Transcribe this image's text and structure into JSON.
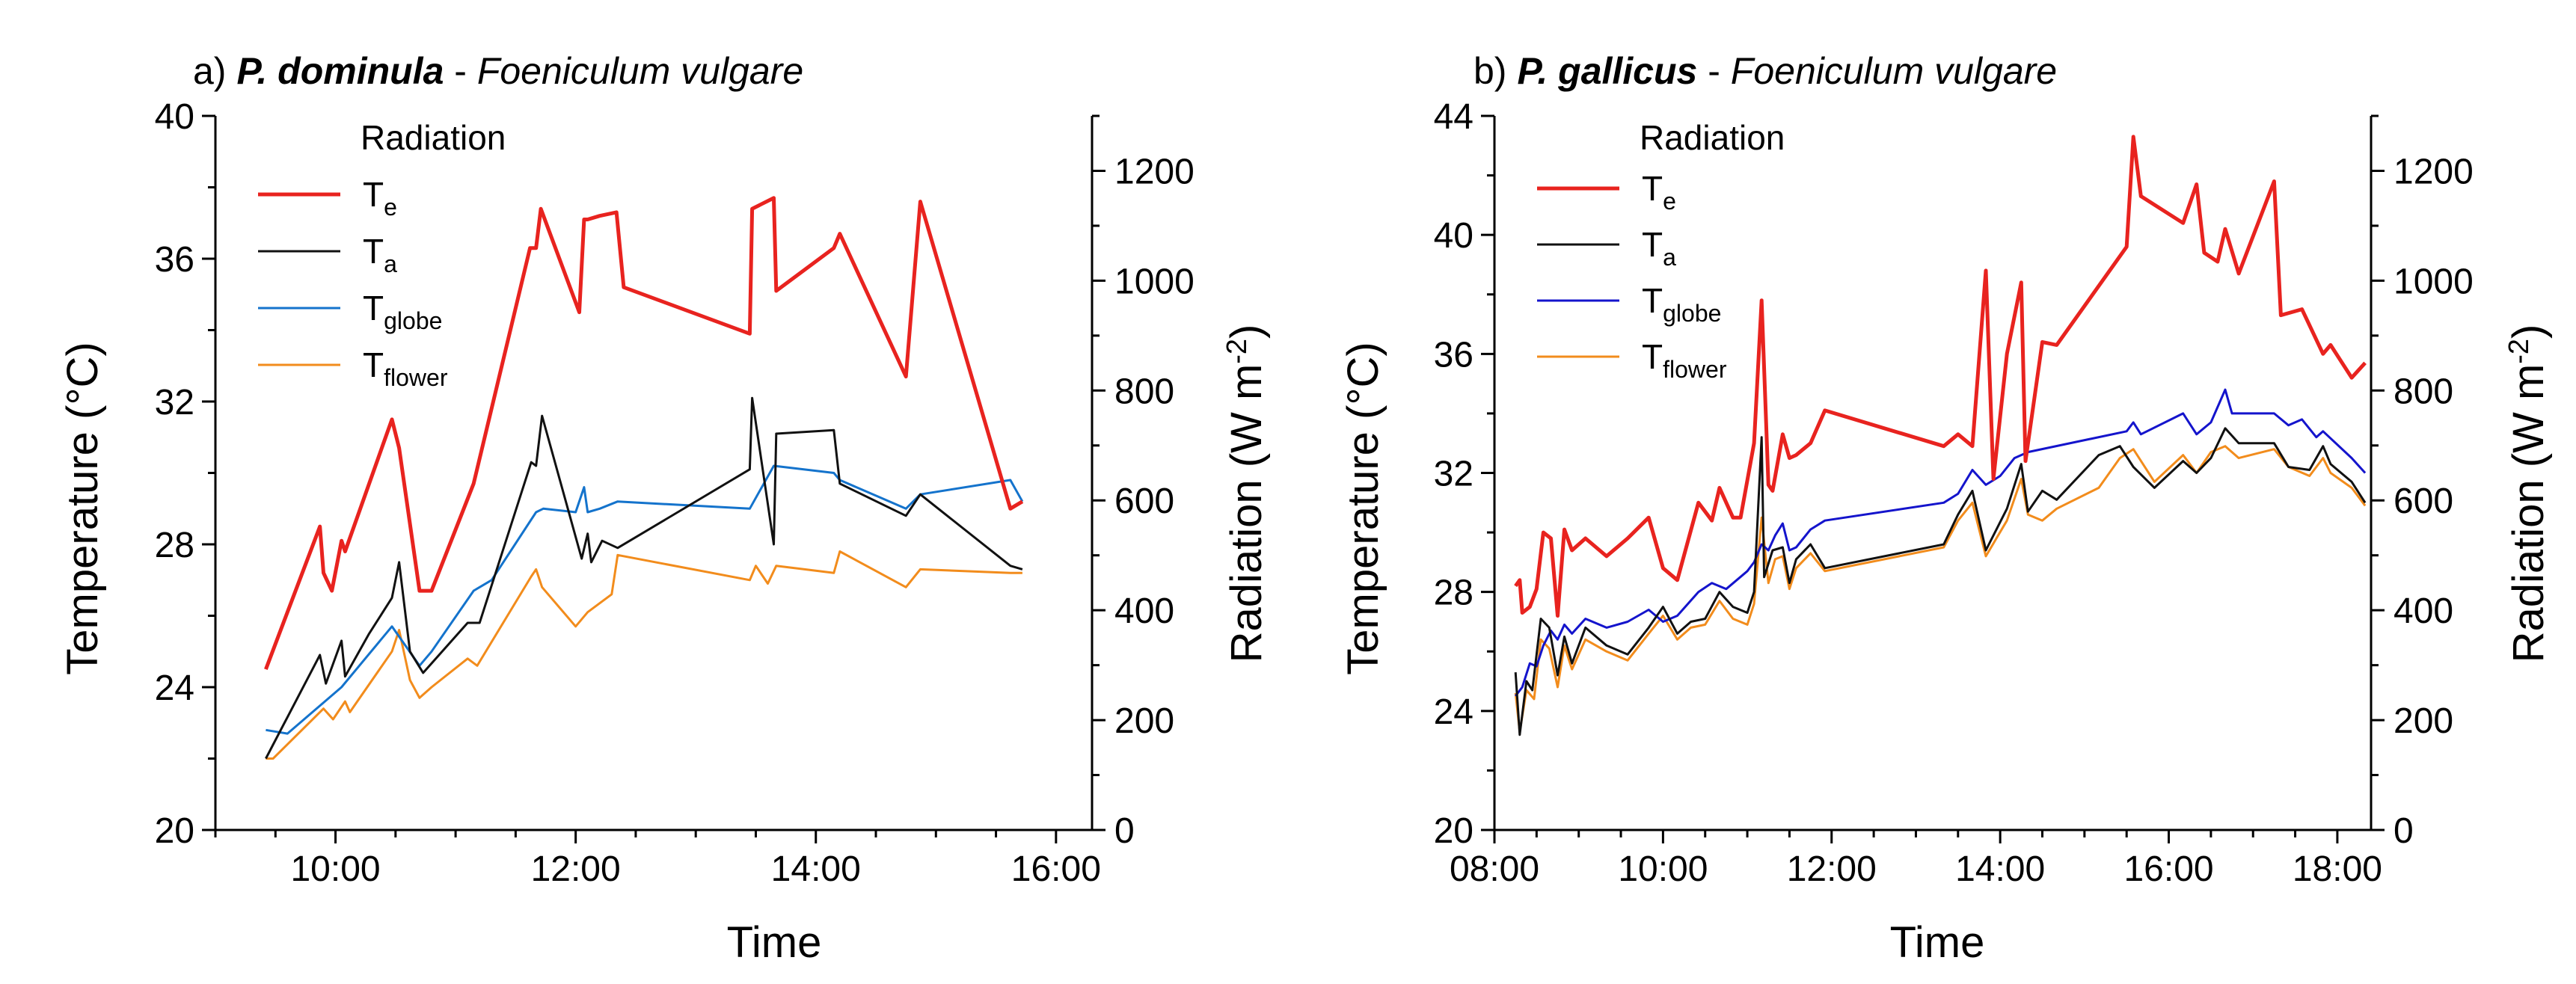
{
  "chart_data": [
    {
      "type": "line",
      "panel_label": "a)",
      "title_species": "P. dominula",
      "title_separator": " - ",
      "title_plant": "Foeniculum vulgare",
      "xlabel": "Time",
      "ylabel": "Temperature (°C)",
      "y2label_main": "Radiation (W m",
      "y2label_sup": "-2",
      "y2label_close": ")",
      "xlim": [
        9.0,
        16.3
      ],
      "ylim": [
        20,
        40
      ],
      "y2lim": [
        0,
        1300
      ],
      "xticks": [
        10,
        12,
        14,
        16
      ],
      "xtick_labels": [
        "10:00",
        "12:00",
        "14:00",
        "16:00"
      ],
      "yticks": [
        20,
        24,
        28,
        32,
        36,
        40
      ],
      "ytick_labels": [
        "20",
        "24",
        "28",
        "32",
        "36",
        "40"
      ],
      "y2ticks": [
        0,
        200,
        400,
        600,
        800,
        1000,
        1200
      ],
      "y2tick_labels": [
        "0",
        "200",
        "400",
        "600",
        "800",
        "1000",
        "1200"
      ],
      "legend_title": "Radiation",
      "series": [
        {
          "name": "Te",
          "base": "T",
          "sub": "e",
          "color": "#e8231f",
          "width": 5,
          "x": [
            9.42,
            9.87,
            9.9,
            9.97,
            10.05,
            10.08,
            10.47,
            10.53,
            10.7,
            10.8,
            11.15,
            11.62,
            11.67,
            11.71,
            12.03,
            12.07,
            12.1,
            12.2,
            12.34,
            12.4,
            13.45,
            13.47,
            13.65,
            13.67,
            14.15,
            14.2,
            14.75,
            14.87,
            15.62,
            15.72
          ],
          "y": [
            24.5,
            28.5,
            27.2,
            26.7,
            28.1,
            27.8,
            31.5,
            30.7,
            26.7,
            26.7,
            29.7,
            36.3,
            36.3,
            37.4,
            34.5,
            37.1,
            37.1,
            37.2,
            37.3,
            35.2,
            33.9,
            37.4,
            37.7,
            35.1,
            36.3,
            36.7,
            32.7,
            37.6,
            29.0,
            29.2
          ]
        },
        {
          "name": "Ta",
          "base": "T",
          "sub": "a",
          "color": "#111111",
          "width": 3,
          "x": [
            9.42,
            9.87,
            9.92,
            10.05,
            10.08,
            10.28,
            10.47,
            10.53,
            10.62,
            10.73,
            11.1,
            11.2,
            11.63,
            11.67,
            11.72,
            12.05,
            12.1,
            12.13,
            12.22,
            12.35,
            13.45,
            13.47,
            13.65,
            13.67,
            14.15,
            14.2,
            14.75,
            14.87,
            15.62,
            15.72
          ],
          "y": [
            22.0,
            24.9,
            24.1,
            25.3,
            24.3,
            25.5,
            26.5,
            27.5,
            25.0,
            24.4,
            25.8,
            25.8,
            30.3,
            30.2,
            31.6,
            27.6,
            28.3,
            27.5,
            28.1,
            27.9,
            30.1,
            32.1,
            28.0,
            31.1,
            31.2,
            29.7,
            28.8,
            29.4,
            27.4,
            27.3
          ]
        },
        {
          "name": "Tglobe",
          "base": "T",
          "sub": "globe",
          "color": "#1473cc",
          "width": 3,
          "x": [
            9.42,
            9.6,
            10.05,
            10.47,
            10.7,
            10.8,
            11.15,
            11.3,
            11.67,
            11.73,
            12.0,
            12.07,
            12.1,
            12.2,
            12.35,
            13.45,
            13.65,
            14.15,
            14.2,
            14.75,
            14.87,
            15.62,
            15.72
          ],
          "y": [
            22.8,
            22.7,
            24.0,
            25.7,
            24.6,
            25.0,
            26.7,
            27.0,
            28.9,
            29.0,
            28.9,
            29.6,
            28.9,
            29.0,
            29.2,
            29.0,
            30.2,
            30.0,
            29.8,
            29.0,
            29.4,
            29.8,
            29.2
          ]
        },
        {
          "name": "Tflower",
          "base": "T",
          "sub": "flower",
          "color": "#f28c1c",
          "width": 3,
          "x": [
            9.42,
            9.48,
            9.9,
            9.98,
            10.08,
            10.12,
            10.47,
            10.53,
            10.62,
            10.7,
            10.8,
            11.1,
            11.18,
            11.63,
            11.67,
            11.72,
            12.0,
            12.1,
            12.3,
            12.35,
            13.45,
            13.5,
            13.6,
            13.67,
            14.15,
            14.2,
            14.75,
            14.87,
            15.62,
            15.72
          ],
          "y": [
            22.0,
            22.0,
            23.4,
            23.1,
            23.6,
            23.3,
            25.0,
            25.6,
            24.2,
            23.7,
            24.0,
            24.8,
            24.6,
            27.1,
            27.3,
            26.8,
            25.7,
            26.1,
            26.6,
            27.7,
            27.0,
            27.4,
            26.9,
            27.4,
            27.2,
            27.8,
            26.8,
            27.3,
            27.2,
            27.2
          ]
        }
      ]
    },
    {
      "type": "line",
      "panel_label": "b)",
      "title_species": "P. gallicus",
      "title_separator": " - ",
      "title_plant": "Foeniculum vulgare",
      "xlabel": "Time",
      "ylabel": "Temperature (°C)",
      "y2label_main": "Radiation (W m",
      "y2label_sup": "-2",
      "y2label_close": ")",
      "xlim": [
        8.0,
        18.4
      ],
      "ylim": [
        20,
        44
      ],
      "y2lim": [
        0,
        1300
      ],
      "xticks": [
        8,
        10,
        12,
        14,
        16,
        18
      ],
      "xtick_labels": [
        "08:00",
        "10:00",
        "12:00",
        "14:00",
        "16:00",
        "18:00"
      ],
      "yticks": [
        20,
        24,
        28,
        32,
        36,
        40,
        44
      ],
      "ytick_labels": [
        "20",
        "24",
        "28",
        "32",
        "36",
        "40",
        "44"
      ],
      "y2ticks": [
        0,
        200,
        400,
        600,
        800,
        1000,
        1200
      ],
      "y2tick_labels": [
        "0",
        "200",
        "400",
        "600",
        "800",
        "1000",
        "1200"
      ],
      "legend_title": "Radiation",
      "series": [
        {
          "name": "Te",
          "base": "T",
          "sub": "e",
          "color": "#e8231f",
          "width": 5,
          "x": [
            8.25,
            8.3,
            8.33,
            8.42,
            8.5,
            8.58,
            8.67,
            8.75,
            8.83,
            8.92,
            9.08,
            9.33,
            9.58,
            9.83,
            10.0,
            10.17,
            10.42,
            10.58,
            10.67,
            10.83,
            10.92,
            11.08,
            11.17,
            11.25,
            11.3,
            11.42,
            11.5,
            11.58,
            11.75,
            11.92,
            13.33,
            13.5,
            13.67,
            13.83,
            13.92,
            14.08,
            14.25,
            14.3,
            14.5,
            14.67,
            15.5,
            15.58,
            15.67,
            16.17,
            16.33,
            16.42,
            16.58,
            16.67,
            16.83,
            17.25,
            17.33,
            17.58,
            17.83,
            17.92,
            18.17,
            18.33
          ],
          "y": [
            28.2,
            28.4,
            27.3,
            27.5,
            28.1,
            30.0,
            29.8,
            27.2,
            30.1,
            29.4,
            29.8,
            29.2,
            29.8,
            30.5,
            28.8,
            28.4,
            31.0,
            30.4,
            31.5,
            30.5,
            30.5,
            33.0,
            37.8,
            31.6,
            31.4,
            33.3,
            32.5,
            32.6,
            33.0,
            34.1,
            32.9,
            33.3,
            32.9,
            38.8,
            31.8,
            36.0,
            38.4,
            32.4,
            36.4,
            36.3,
            39.6,
            43.3,
            41.3,
            40.4,
            41.7,
            39.4,
            39.1,
            40.2,
            38.7,
            41.8,
            37.3,
            37.5,
            36.0,
            36.3,
            35.2,
            35.7
          ]
        },
        {
          "name": "Ta",
          "base": "T",
          "sub": "a",
          "color": "#111111",
          "width": 3,
          "x": [
            8.25,
            8.3,
            8.38,
            8.45,
            8.55,
            8.65,
            8.75,
            8.83,
            8.92,
            9.08,
            9.33,
            9.58,
            9.83,
            10.0,
            10.17,
            10.33,
            10.5,
            10.67,
            10.83,
            11.0,
            11.08,
            11.17,
            11.2,
            11.3,
            11.42,
            11.5,
            11.58,
            11.75,
            11.92,
            13.33,
            13.5,
            13.67,
            13.83,
            14.08,
            14.25,
            14.33,
            14.5,
            14.67,
            15.17,
            15.42,
            15.58,
            15.83,
            16.17,
            16.33,
            16.5,
            16.67,
            16.83,
            17.25,
            17.42,
            17.67,
            17.83,
            17.92,
            18.17,
            18.33
          ],
          "y": [
            25.3,
            23.2,
            25.0,
            24.7,
            27.1,
            26.8,
            25.2,
            26.5,
            25.6,
            26.8,
            26.2,
            25.9,
            26.8,
            27.5,
            26.6,
            27.0,
            27.1,
            28.0,
            27.5,
            27.3,
            28.0,
            33.2,
            28.5,
            29.4,
            29.5,
            28.3,
            29.1,
            29.6,
            28.8,
            29.6,
            30.6,
            31.4,
            29.4,
            30.8,
            32.3,
            30.7,
            31.4,
            31.1,
            32.6,
            32.9,
            32.2,
            31.5,
            32.4,
            32.0,
            32.5,
            33.5,
            33.0,
            33.0,
            32.2,
            32.1,
            32.9,
            32.3,
            31.7,
            31.0
          ]
        },
        {
          "name": "Tglobe",
          "base": "T",
          "sub": "globe",
          "color": "#1414cc",
          "width": 3,
          "x": [
            8.25,
            8.33,
            8.42,
            8.5,
            8.58,
            8.67,
            8.75,
            8.83,
            8.92,
            9.08,
            9.33,
            9.58,
            9.83,
            10.0,
            10.17,
            10.42,
            10.58,
            10.75,
            11.0,
            11.08,
            11.17,
            11.25,
            11.33,
            11.42,
            11.5,
            11.58,
            11.75,
            11.92,
            13.33,
            13.5,
            13.67,
            13.83,
            14.0,
            14.17,
            14.33,
            15.5,
            15.58,
            15.67,
            16.17,
            16.33,
            16.5,
            16.67,
            16.75,
            17.25,
            17.42,
            17.58,
            17.75,
            17.83,
            18.17,
            18.33
          ],
          "y": [
            24.5,
            24.8,
            25.6,
            25.5,
            26.2,
            26.7,
            26.4,
            26.9,
            26.6,
            27.1,
            26.8,
            27.0,
            27.4,
            27.0,
            27.2,
            28.0,
            28.3,
            28.1,
            28.7,
            29.0,
            29.6,
            29.4,
            29.9,
            30.3,
            29.4,
            29.5,
            30.1,
            30.4,
            31.0,
            31.3,
            32.1,
            31.6,
            31.9,
            32.5,
            32.7,
            33.4,
            33.7,
            33.3,
            34.0,
            33.3,
            33.7,
            34.8,
            34.0,
            34.0,
            33.6,
            33.8,
            33.2,
            33.4,
            32.5,
            32.0
          ]
        },
        {
          "name": "Tflower",
          "base": "T",
          "sub": "flower",
          "color": "#f28c1c",
          "width": 3,
          "x": [
            8.25,
            8.3,
            8.38,
            8.47,
            8.55,
            8.65,
            8.75,
            8.83,
            8.92,
            9.08,
            9.33,
            9.58,
            9.83,
            10.0,
            10.17,
            10.33,
            10.5,
            10.67,
            10.83,
            11.0,
            11.08,
            11.17,
            11.25,
            11.33,
            11.42,
            11.5,
            11.58,
            11.75,
            11.92,
            13.33,
            13.5,
            13.67,
            13.83,
            14.08,
            14.25,
            14.33,
            14.5,
            14.67,
            15.17,
            15.42,
            15.58,
            15.83,
            16.17,
            16.33,
            16.5,
            16.67,
            16.83,
            17.25,
            17.42,
            17.67,
            17.83,
            17.92,
            18.17,
            18.33
          ],
          "y": [
            24.6,
            23.3,
            24.7,
            24.4,
            26.4,
            26.1,
            24.8,
            26.2,
            25.4,
            26.4,
            26.0,
            25.7,
            26.6,
            27.2,
            26.4,
            26.8,
            26.9,
            27.7,
            27.1,
            26.9,
            27.6,
            30.5,
            28.3,
            29.1,
            29.2,
            28.1,
            28.8,
            29.3,
            28.7,
            29.5,
            30.4,
            31.0,
            29.2,
            30.4,
            31.8,
            30.6,
            30.4,
            30.8,
            31.5,
            32.5,
            32.8,
            31.7,
            32.6,
            32.0,
            32.7,
            32.9,
            32.5,
            32.8,
            32.2,
            31.9,
            32.5,
            32.0,
            31.5,
            30.9
          ]
        }
      ]
    }
  ]
}
